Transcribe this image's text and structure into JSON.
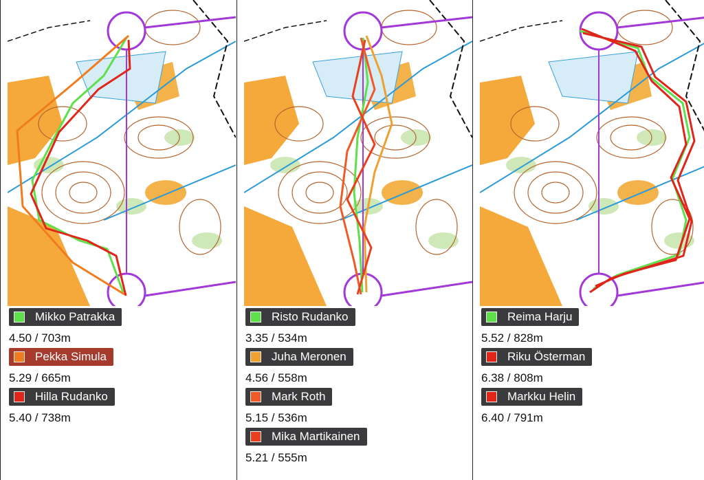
{
  "panels": [
    {
      "runners": [
        {
          "name": "Mikko Patrakka",
          "color": "#5ee04a",
          "result": "4.50 / 703m"
        },
        {
          "name": "Pekka Simula",
          "color": "#f07c1e",
          "result": "5.29 / 665m"
        },
        {
          "name": "Hilla Rudanko",
          "color": "#e0251b",
          "result": "5.40 / 738m"
        }
      ]
    },
    {
      "runners": [
        {
          "name": "Risto Rudanko",
          "color": "#5ee04a",
          "result": "3.35 / 534m"
        },
        {
          "name": "Juha Meronen",
          "color": "#f0a030",
          "result": "4.56 / 558m"
        },
        {
          "name": "Mark Roth",
          "color": "#f05a28",
          "result": "5.15 / 536m"
        },
        {
          "name": "Mika Martikainen",
          "color": "#e8401e",
          "result": "5.21 / 555m"
        }
      ]
    },
    {
      "runners": [
        {
          "name": "Reima Harju",
          "color": "#5ee04a",
          "result": "5.52 / 828m"
        },
        {
          "name": "Riku Österman",
          "color": "#e0251b",
          "result": "6.38 / 808m"
        },
        {
          "name": "Markku Helin",
          "color": "#e0251b",
          "result": "6.40 / 791m"
        }
      ]
    }
  ]
}
